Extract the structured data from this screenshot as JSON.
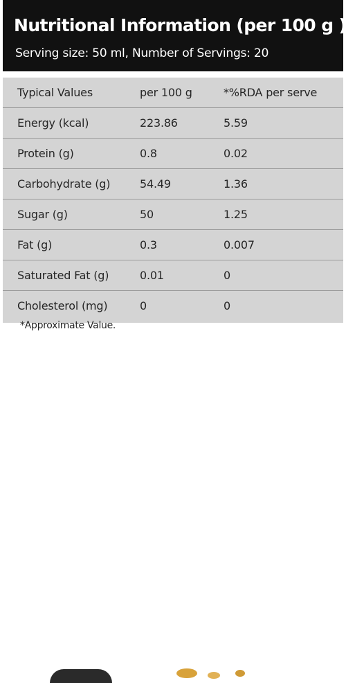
{
  "header": {
    "title": "Nutritional Information (per 100 g )",
    "subtitle": "Serving size: 50 ml, Number of Servings: 20"
  },
  "table": {
    "header_row": [
      "Typical Values",
      "per 100 g",
      "*%RDA per serve"
    ],
    "rows": [
      [
        "Energy (kcal)",
        "223.86",
        "5.59"
      ],
      [
        "Protein (g)",
        "0.8",
        "0.02"
      ],
      [
        "Carbohydrate (g)",
        "54.49",
        "1.36"
      ],
      [
        "Sugar (g)",
        "50",
        "1.25"
      ],
      [
        "Fat (g)",
        "0.3",
        "0.007"
      ],
      [
        "Saturated Fat (g)",
        "0.01",
        "0"
      ],
      [
        "Cholesterol (mg)",
        "0",
        "0"
      ]
    ]
  },
  "footnote": "*Approximate Value.",
  "colors": {
    "header_background": "#111111",
    "table_background": "#d4d4d4",
    "text": "#262626"
  }
}
